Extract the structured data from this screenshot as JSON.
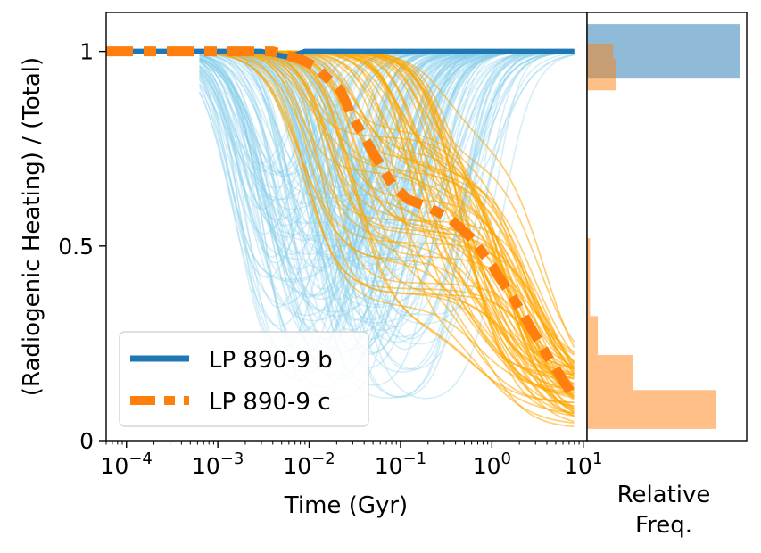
{
  "chart_data": [
    {
      "type": "line",
      "xlabel": "Time (Gyr)",
      "ylabel": "(Radiogenic Heating) / (Total)",
      "xscale": "log",
      "xlim": [
        6e-05,
        11
      ],
      "ylim": [
        0,
        1.1
      ],
      "x_tick_labels": [
        {
          "base": "10",
          "exp": "−4"
        },
        {
          "base": "10",
          "exp": "−3"
        },
        {
          "base": "10",
          "exp": "−2"
        },
        {
          "base": "10",
          "exp": "−1"
        },
        {
          "base": "10",
          "exp": "0"
        },
        {
          "base": "10",
          "exp": "1"
        }
      ],
      "y_ticks": [
        0,
        0.5,
        1
      ],
      "y_tick_labels": [
        "0",
        "0.5",
        "1"
      ],
      "grid": false,
      "legend": {
        "placement": "lower-left",
        "entries": [
          "LP 890-9 b",
          "LP 890-9 c"
        ]
      },
      "series": [
        {
          "name": "LP 890-9 b",
          "style": "solid",
          "color": "#1f77b4",
          "points": [
            [
              6e-05,
              1.0
            ],
            [
              0.003,
              1.0
            ],
            [
              0.006,
              0.985
            ],
            [
              0.009,
              1.0
            ],
            [
              8,
              1.0
            ]
          ]
        },
        {
          "name": "LP 890-9 c",
          "style": "dashed",
          "color": "#ff7f0e",
          "points": [
            [
              6e-05,
              1.0
            ],
            [
              0.004,
              1.0
            ],
            [
              0.008,
              0.98
            ],
            [
              0.012,
              0.96
            ],
            [
              0.016,
              0.93
            ],
            [
              0.022,
              0.9
            ],
            [
              0.03,
              0.83
            ],
            [
              0.05,
              0.74
            ],
            [
              0.08,
              0.66
            ],
            [
              0.12,
              0.62
            ],
            [
              0.2,
              0.6
            ],
            [
              0.35,
              0.57
            ],
            [
              0.6,
              0.52
            ],
            [
              1.0,
              0.45
            ],
            [
              2.0,
              0.34
            ],
            [
              4.0,
              0.22
            ],
            [
              8.0,
              0.11
            ]
          ]
        }
      ],
      "ensembles": [
        {
          "color": "#87ceeb",
          "description_group": "b-samples"
        },
        {
          "color": "#ffa500",
          "description_group": "c-samples"
        }
      ]
    },
    {
      "type": "histogram",
      "orientation": "horizontal",
      "xlabel": "Relative\nFreq.",
      "xlabel_lines": [
        "Relative",
        "Freq."
      ],
      "ylim": [
        0,
        1.1
      ],
      "series": [
        {
          "color": "#1f77b4",
          "bins": [
            {
              "y0": 0.93,
              "y1": 1.07,
              "freq": 1.0
            }
          ]
        },
        {
          "color": "#ff7f0e",
          "bins": [
            {
              "y0": 0.03,
              "y1": 0.13,
              "freq": 0.84
            },
            {
              "y0": 0.13,
              "y1": 0.22,
              "freq": 0.3
            },
            {
              "y0": 0.22,
              "y1": 0.32,
              "freq": 0.07
            },
            {
              "y0": 0.32,
              "y1": 0.42,
              "freq": 0.02
            },
            {
              "y0": 0.42,
              "y1": 0.52,
              "freq": 0.02
            },
            {
              "y0": 0.9,
              "y1": 0.98,
              "freq": 0.19
            },
            {
              "y0": 0.98,
              "y1": 1.02,
              "freq": 0.17
            }
          ]
        }
      ]
    }
  ]
}
